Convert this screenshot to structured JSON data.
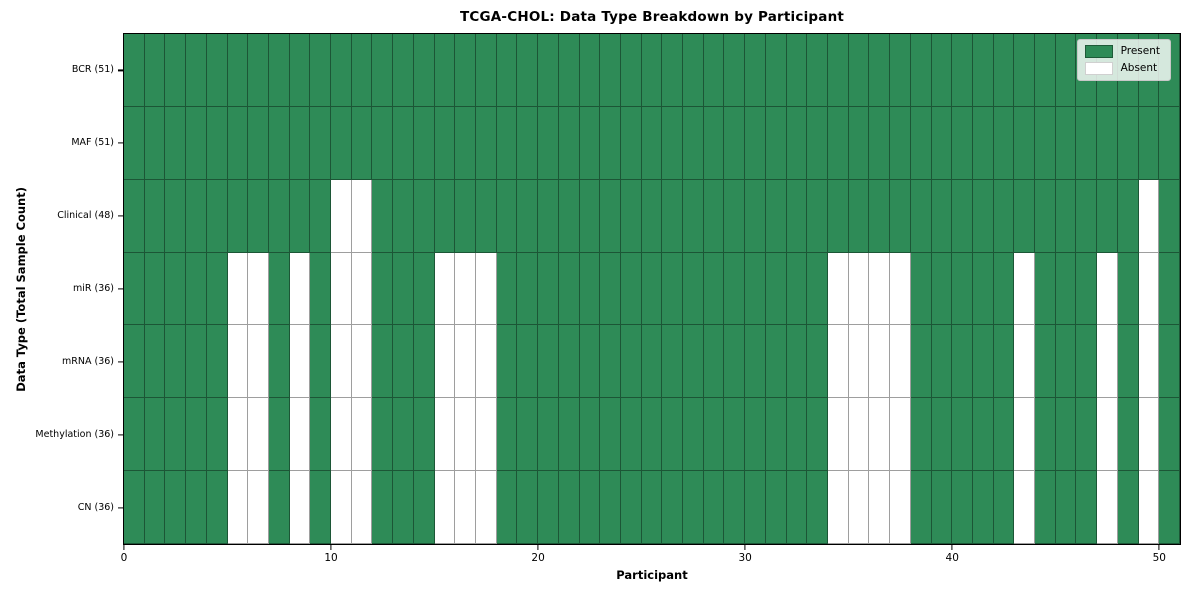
{
  "title": "TCGA-CHOL: Data Type Breakdown by Participant",
  "legend": {
    "present_label": "Present",
    "absent_label": "Absent"
  },
  "colors": {
    "present": "#2E8B57",
    "absent": "#FFFFFF",
    "cell_edge": "rgba(0,0,0,0.38)"
  },
  "chart_data": {
    "type": "heatmap",
    "title": "TCGA-CHOL: Data Type Breakdown by Participant",
    "xlabel": "Participant",
    "ylabel": "Data Type (Total Sample Count)",
    "x_ticks": [
      0,
      10,
      20,
      30,
      40,
      50
    ],
    "n_participants": 51,
    "value_encoding": {
      "present": 1,
      "absent": 0
    },
    "legend_position": "upper right",
    "grid": true,
    "rows": [
      {
        "name": "BCR",
        "label": "BCR (51)",
        "total": 51,
        "absent_participants": []
      },
      {
        "name": "MAF",
        "label": "MAF (51)",
        "total": 51,
        "absent_participants": []
      },
      {
        "name": "Clinical",
        "label": "Clinical (48)",
        "total": 48,
        "absent_participants": [
          10,
          11,
          49
        ]
      },
      {
        "name": "miR",
        "label": "miR (36)",
        "total": 36,
        "absent_participants": [
          5,
          6,
          8,
          10,
          11,
          15,
          16,
          17,
          34,
          35,
          36,
          37,
          43,
          47,
          49
        ]
      },
      {
        "name": "mRNA",
        "label": "mRNA (36)",
        "total": 36,
        "absent_participants": [
          5,
          6,
          8,
          10,
          11,
          15,
          16,
          17,
          34,
          35,
          36,
          37,
          43,
          47,
          49
        ]
      },
      {
        "name": "Methylation",
        "label": "Methylation (36)",
        "total": 36,
        "absent_participants": [
          5,
          6,
          8,
          10,
          11,
          15,
          16,
          17,
          34,
          35,
          36,
          37,
          43,
          47,
          49
        ]
      },
      {
        "name": "CN",
        "label": "CN (36)",
        "total": 36,
        "absent_participants": [
          5,
          6,
          8,
          10,
          11,
          15,
          16,
          17,
          34,
          35,
          36,
          37,
          43,
          47,
          49
        ]
      }
    ]
  }
}
